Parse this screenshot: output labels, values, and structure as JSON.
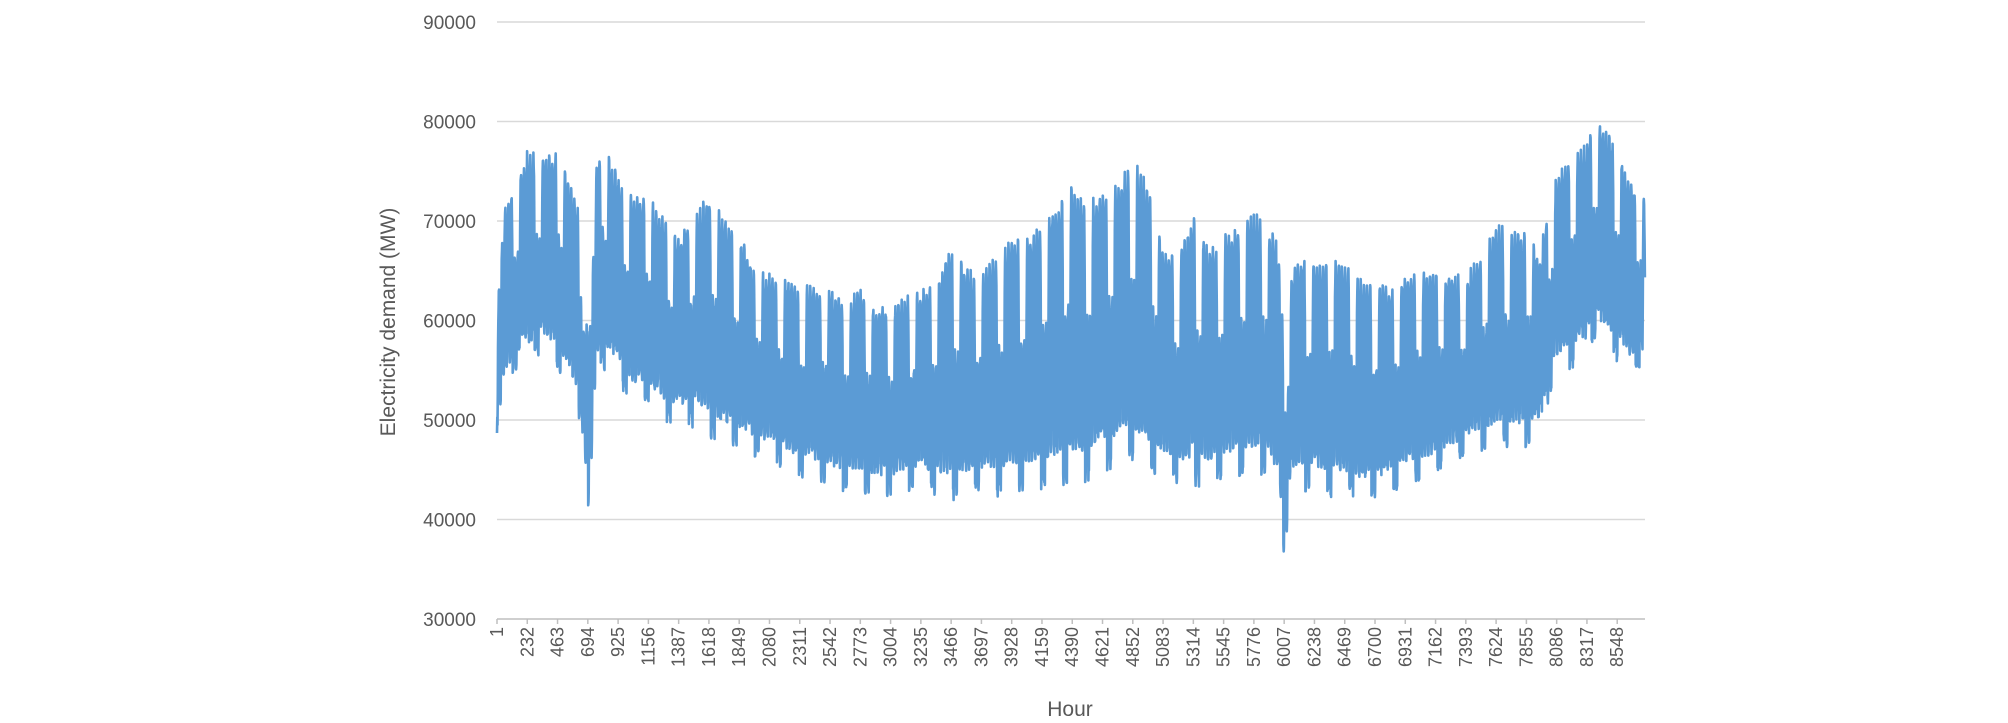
{
  "chart_data": {
    "type": "line",
    "xlabel": "Hour",
    "ylabel": "Electricity demand (MW)",
    "ylim": [
      30000,
      90000
    ],
    "yticks": [
      "30000",
      "40000",
      "50000",
      "60000",
      "70000",
      "80000",
      "90000"
    ],
    "xlim": [
      1,
      8760
    ],
    "xticks": [
      "1",
      "232",
      "463",
      "694",
      "925",
      "1156",
      "1387",
      "1618",
      "1849",
      "2080",
      "2311",
      "2542",
      "2773",
      "3004",
      "3235",
      "3466",
      "3697",
      "3928",
      "4159",
      "4390",
      "4621",
      "4852",
      "5083",
      "5314",
      "5545",
      "5776",
      "6007",
      "6238",
      "6469",
      "6700",
      "6931",
      "7162",
      "7393",
      "7624",
      "7855",
      "8086",
      "8317",
      "8548"
    ],
    "grid": true,
    "legend": "none",
    "series": [
      {
        "color": "#5b9bd5",
        "envelope_hours": [
          1,
          60,
          120,
          232,
          350,
          463,
          560,
          650,
          694,
          720,
          760,
          800,
          925,
          1050,
          1156,
          1270,
          1387,
          1500,
          1618,
          1730,
          1849,
          1960,
          2080,
          2200,
          2311,
          2420,
          2542,
          2660,
          2773,
          2890,
          3004,
          3120,
          3235,
          3350,
          3466,
          3580,
          3697,
          3810,
          3928,
          4040,
          4159,
          4270,
          4390,
          4500,
          4621,
          4740,
          4852,
          4970,
          5083,
          5200,
          5314,
          5430,
          5545,
          5660,
          5776,
          5890,
          5960,
          6007,
          6060,
          6120,
          6238,
          6350,
          6469,
          6580,
          6700,
          6820,
          6931,
          7040,
          7162,
          7280,
          7393,
          7510,
          7624,
          7740,
          7855,
          7960,
          8030,
          8086,
          8200,
          8317,
          8380,
          8430,
          8548,
          8650,
          8760
        ],
        "daily_peak": [
          60000,
          71000,
          73000,
          76500,
          76000,
          76500,
          73000,
          70000,
          58000,
          60000,
          75000,
          77500,
          74000,
          72000,
          72000,
          70000,
          68000,
          70000,
          72000,
          70000,
          68000,
          65000,
          64000,
          63500,
          63000,
          63000,
          62500,
          61500,
          62500,
          61000,
          61000,
          62000,
          62500,
          63500,
          66500,
          65000,
          64000,
          66000,
          67500,
          68000,
          69000,
          71000,
          73500,
          71000,
          72500,
          73000,
          76000,
          73000,
          67000,
          66000,
          70000,
          66500,
          68000,
          69000,
          70500,
          69000,
          67500,
          58000,
          64000,
          66000,
          65500,
          65500,
          65500,
          63500,
          63000,
          63000,
          63500,
          64500,
          64500,
          64000,
          64000,
          66000,
          69000,
          68500,
          68000,
          66000,
          72000,
          74000,
          76500,
          77000,
          80000,
          79000,
          77000,
          73000,
          72000
        ],
        "night_min": [
          48000,
          53000,
          55000,
          56000,
          57000,
          56000,
          53000,
          50000,
          39000,
          44000,
          55000,
          56000,
          54000,
          52000,
          52000,
          50500,
          50000,
          50000,
          49000,
          48000,
          47500,
          47000,
          46500,
          45500,
          45000,
          44500,
          44000,
          43500,
          43500,
          43000,
          43000,
          43500,
          43500,
          43000,
          42500,
          43000,
          43500,
          43000,
          43500,
          43500,
          43500,
          44000,
          44000,
          44500,
          45500,
          46000,
          46500,
          45500,
          45000,
          44000,
          44000,
          44000,
          44500,
          45000,
          45000,
          45000,
          42000,
          37000,
          43000,
          43500,
          43500,
          43000,
          43000,
          42500,
          42500,
          43000,
          44000,
          44500,
          45000,
          46000,
          47000,
          47500,
          48000,
          48000,
          48000,
          48500,
          53000,
          55000,
          56000,
          56500,
          59000,
          58000,
          56500,
          55000,
          56000
        ]
      }
    ]
  }
}
